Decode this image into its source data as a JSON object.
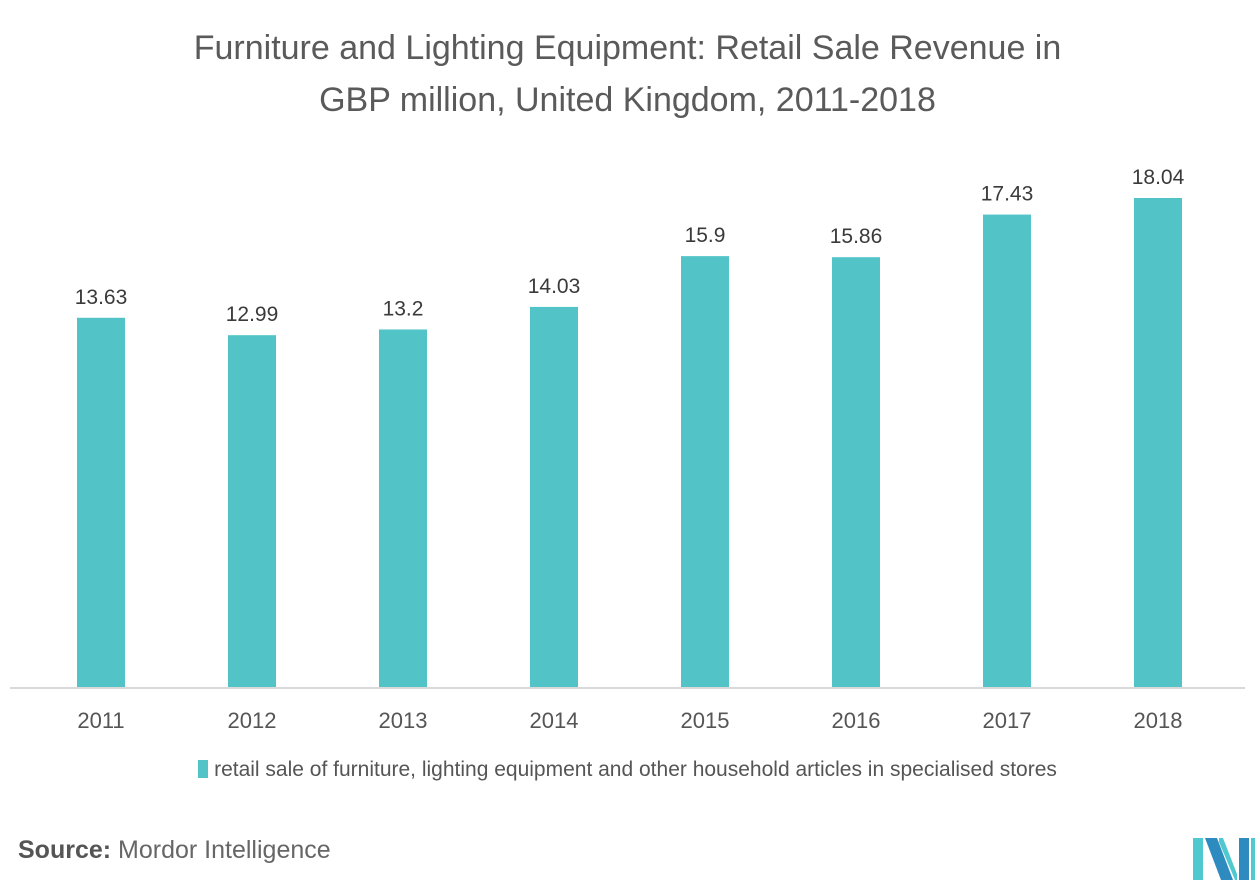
{
  "title_line1": "Furniture and Lighting Equipment: Retail Sale Revenue in",
  "title_line2": "GBP million, United Kingdom, 2011-2018",
  "source_label": "Source:",
  "source_text": "Mordor Intelligence",
  "logo": "mordor-intelligence-logo-icon",
  "colors": {
    "bar": "#52c4c7",
    "axis": "#d9d9d9",
    "logo_dark": "#2e8bc0",
    "logo_light": "#4fc9cf"
  },
  "chart_data": {
    "type": "bar",
    "title": "Furniture and Lighting Equipment: Retail Sale Revenue in GBP million, United Kingdom, 2011-2018",
    "categories": [
      "2011",
      "2012",
      "2013",
      "2014",
      "2015",
      "2016",
      "2017",
      "2018"
    ],
    "series": [
      {
        "name": "retail sale of furniture, lighting equipment and other household articles in specialised stores",
        "values": [
          13.63,
          12.99,
          13.2,
          14.03,
          15.9,
          15.86,
          17.43,
          18.04
        ]
      }
    ],
    "value_labels": [
      "13.63",
      "12.99",
      "13.2",
      "14.03",
      "15.9",
      "15.86",
      "17.43",
      "18.04"
    ],
    "xlabel": "",
    "ylabel": "",
    "ylim": [
      0,
      18.04
    ],
    "grid": false,
    "legend_position": "bottom"
  }
}
